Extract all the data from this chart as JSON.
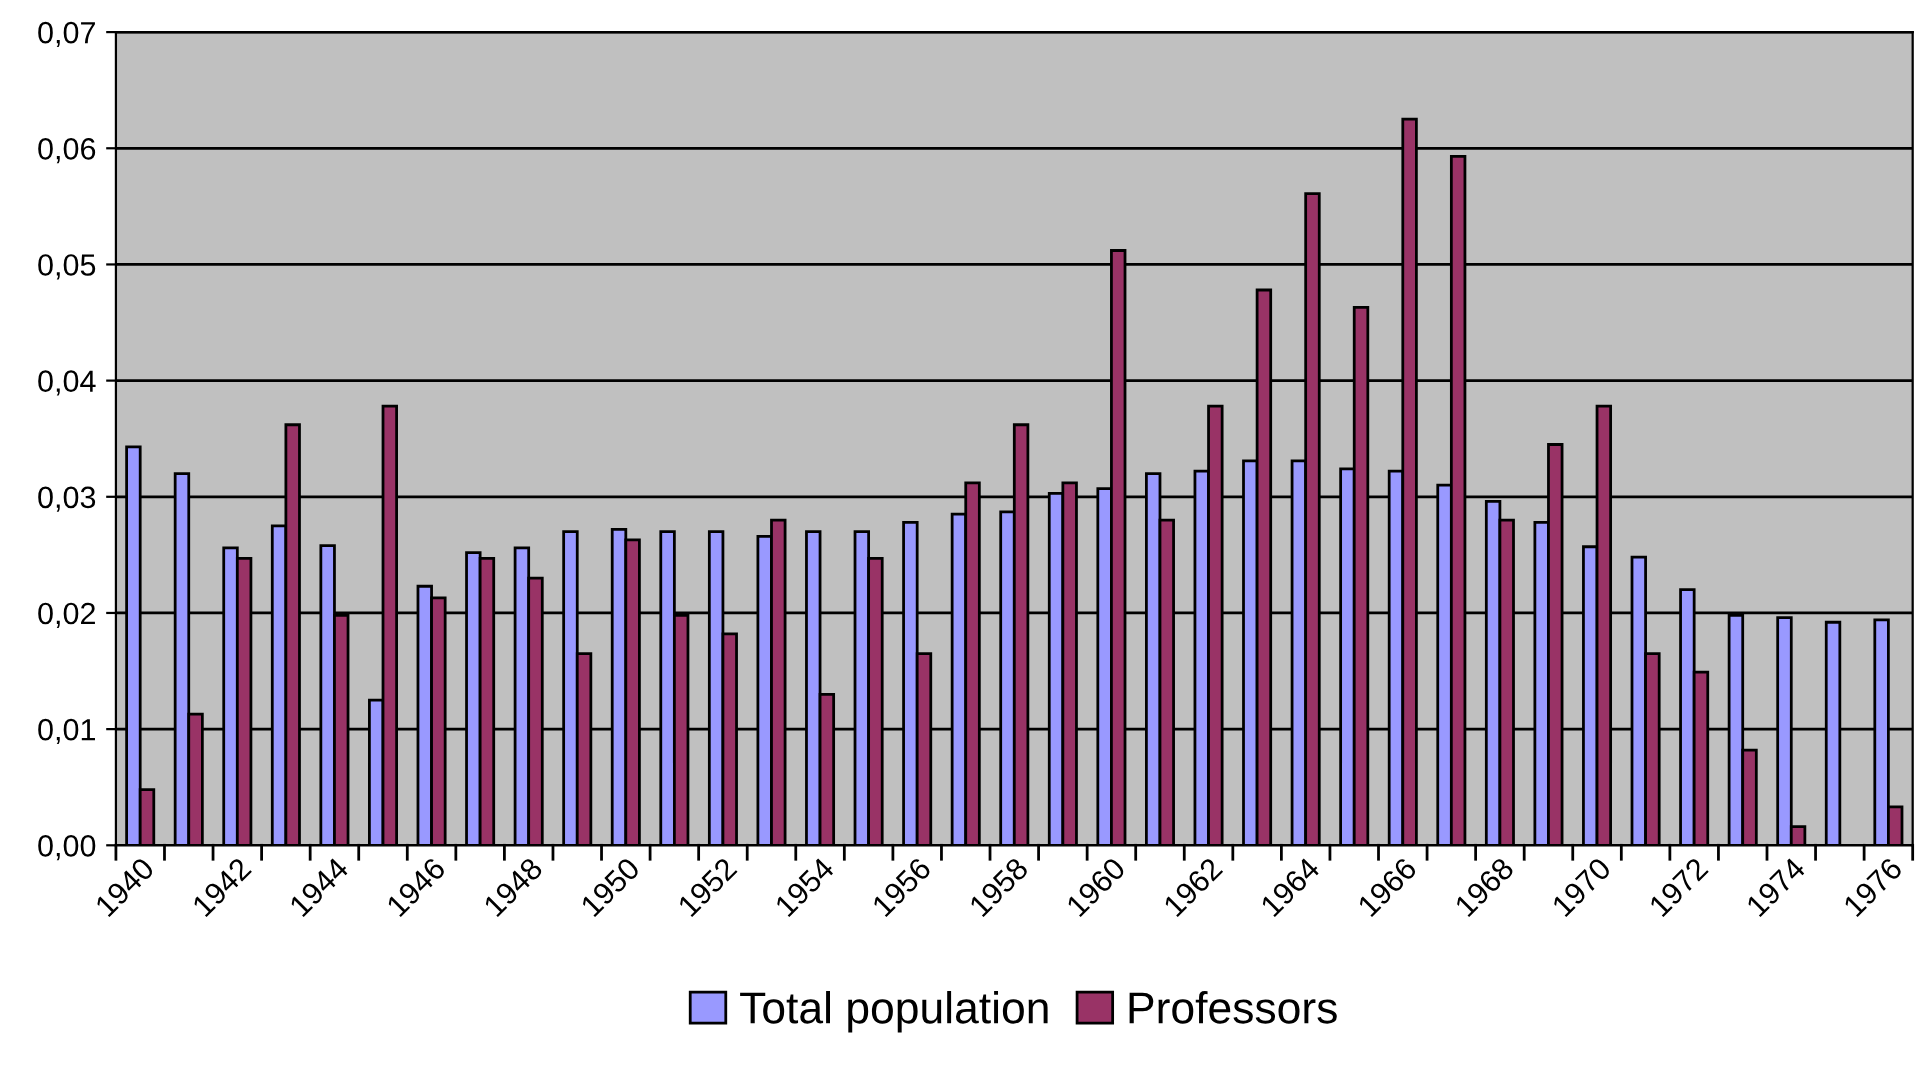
{
  "chart_data": {
    "type": "bar",
    "categories": [
      "1940",
      null,
      "1942",
      null,
      "1944",
      null,
      "1946",
      null,
      "1948",
      null,
      "1950",
      null,
      "1952",
      null,
      "1954",
      null,
      "1956",
      null,
      "1958",
      null,
      "1960",
      null,
      "1962",
      null,
      "1964",
      null,
      "1966",
      null,
      "1968",
      null,
      "1970",
      null,
      "1972",
      null,
      "1974",
      null,
      "1976"
    ],
    "series": [
      {
        "name": "Total population",
        "color": "#9999ff",
        "values": [
          0.0343,
          0.032,
          0.0256,
          0.0275,
          0.0258,
          0.0125,
          0.0223,
          0.0252,
          0.0256,
          0.027,
          0.0272,
          0.027,
          0.027,
          0.0266,
          0.027,
          0.027,
          0.0278,
          0.0285,
          0.0287,
          0.0303,
          0.0307,
          0.032,
          0.0322,
          0.0331,
          0.0331,
          0.0324,
          0.0322,
          0.031,
          0.0296,
          0.0278,
          0.0257,
          0.0248,
          0.022,
          0.0198,
          0.0196,
          0.0192,
          0.0194
        ]
      },
      {
        "name": "Professors",
        "color": "#993366",
        "values": [
          0.0048,
          0.0113,
          0.0247,
          0.0362,
          0.0198,
          0.0378,
          0.0213,
          0.0247,
          0.023,
          0.0165,
          0.0263,
          0.0198,
          0.0182,
          0.028,
          0.013,
          0.0247,
          0.0165,
          0.0312,
          0.0362,
          0.0312,
          0.0512,
          0.028,
          0.0378,
          0.0478,
          0.0561,
          0.0463,
          0.0625,
          0.0593,
          0.028,
          0.0345,
          0.0378,
          0.0165,
          0.0149,
          0.0082,
          0.0016,
          null,
          0.0033
        ]
      }
    ],
    "ylim": [
      0,
      0.07
    ],
    "yticks": [
      {
        "value": 0,
        "label": "0,00"
      },
      {
        "value": 0.01,
        "label": "0,01"
      },
      {
        "value": 0.02,
        "label": "0,02"
      },
      {
        "value": 0.03,
        "label": "0,03"
      },
      {
        "value": 0.04,
        "label": "0,04"
      },
      {
        "value": 0.05,
        "label": "0,05"
      },
      {
        "value": 0.06,
        "label": "0,06"
      },
      {
        "value": 0.07,
        "label": "0,07"
      }
    ],
    "grid": "y",
    "legend": "bottom"
  }
}
